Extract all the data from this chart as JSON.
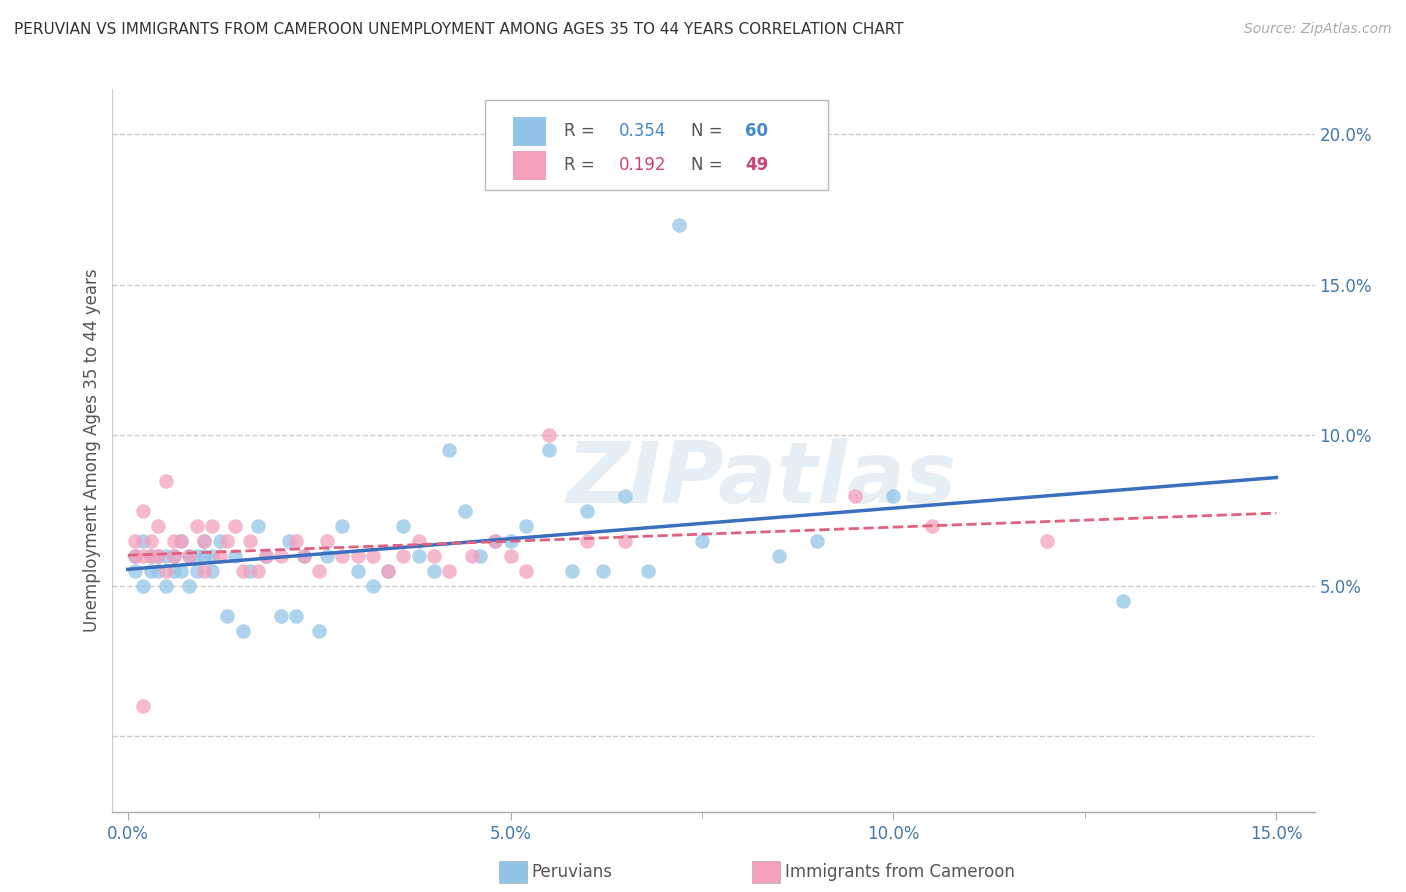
{
  "title": "PERUVIAN VS IMMIGRANTS FROM CAMEROON UNEMPLOYMENT AMONG AGES 35 TO 44 YEARS CORRELATION CHART",
  "source": "Source: ZipAtlas.com",
  "ylabel_label": "Unemployment Among Ages 35 to 44 years",
  "legend_label1": "Peruvians",
  "legend_label2": "Immigrants from Cameroon",
  "R1": 0.354,
  "N1": 60,
  "R2": 0.192,
  "N2": 49,
  "xlim": [
    -0.002,
    0.155
  ],
  "ylim": [
    -0.025,
    0.215
  ],
  "xticks": [
    0.0,
    0.05,
    0.1,
    0.15
  ],
  "yticks": [
    0.0,
    0.05,
    0.1,
    0.15,
    0.2
  ],
  "xticklabels": [
    "0.0%",
    "5.0%",
    "10.0%",
    "15.0%"
  ],
  "yticklabels": [
    "",
    "5.0%",
    "10.0%",
    "15.0%",
    "20.0%"
  ],
  "color_blue": "#92c5e8",
  "color_pink": "#f4a0bc",
  "color_blue_line": "#3a6fbe",
  "color_pink_line": "#e06080",
  "background_color": "#ffffff",
  "watermark": "ZIPatlas",
  "peruvians_x": [
    0.001,
    0.001,
    0.002,
    0.002,
    0.003,
    0.003,
    0.004,
    0.004,
    0.005,
    0.005,
    0.006,
    0.006,
    0.007,
    0.007,
    0.008,
    0.008,
    0.009,
    0.009,
    0.01,
    0.01,
    0.011,
    0.011,
    0.012,
    0.013,
    0.014,
    0.015,
    0.016,
    0.017,
    0.018,
    0.02,
    0.021,
    0.022,
    0.023,
    0.025,
    0.026,
    0.028,
    0.03,
    0.032,
    0.034,
    0.036,
    0.038,
    0.04,
    0.042,
    0.044,
    0.046,
    0.048,
    0.05,
    0.052,
    0.055,
    0.058,
    0.06,
    0.062,
    0.065,
    0.068,
    0.072,
    0.075,
    0.085,
    0.09,
    0.1,
    0.13
  ],
  "peruvians_y": [
    0.06,
    0.055,
    0.065,
    0.05,
    0.06,
    0.055,
    0.06,
    0.055,
    0.06,
    0.05,
    0.06,
    0.055,
    0.065,
    0.055,
    0.06,
    0.05,
    0.06,
    0.055,
    0.06,
    0.065,
    0.055,
    0.06,
    0.065,
    0.04,
    0.06,
    0.035,
    0.055,
    0.07,
    0.06,
    0.04,
    0.065,
    0.04,
    0.06,
    0.035,
    0.06,
    0.07,
    0.055,
    0.05,
    0.055,
    0.07,
    0.06,
    0.055,
    0.095,
    0.075,
    0.06,
    0.065,
    0.065,
    0.07,
    0.095,
    0.055,
    0.075,
    0.055,
    0.08,
    0.055,
    0.17,
    0.065,
    0.06,
    0.065,
    0.08,
    0.045
  ],
  "cameroon_x": [
    0.001,
    0.001,
    0.002,
    0.002,
    0.003,
    0.003,
    0.004,
    0.004,
    0.005,
    0.005,
    0.006,
    0.006,
    0.007,
    0.008,
    0.009,
    0.01,
    0.01,
    0.011,
    0.012,
    0.013,
    0.014,
    0.015,
    0.016,
    0.017,
    0.018,
    0.02,
    0.022,
    0.023,
    0.025,
    0.026,
    0.028,
    0.03,
    0.032,
    0.034,
    0.036,
    0.038,
    0.04,
    0.042,
    0.045,
    0.048,
    0.05,
    0.052,
    0.055,
    0.06,
    0.065,
    0.095,
    0.105,
    0.12,
    0.002
  ],
  "cameroon_y": [
    0.065,
    0.06,
    0.075,
    0.06,
    0.065,
    0.06,
    0.07,
    0.06,
    0.085,
    0.055,
    0.065,
    0.06,
    0.065,
    0.06,
    0.07,
    0.065,
    0.055,
    0.07,
    0.06,
    0.065,
    0.07,
    0.055,
    0.065,
    0.055,
    0.06,
    0.06,
    0.065,
    0.06,
    0.055,
    0.065,
    0.06,
    0.06,
    0.06,
    0.055,
    0.06,
    0.065,
    0.06,
    0.055,
    0.06,
    0.065,
    0.06,
    0.055,
    0.1,
    0.065,
    0.065,
    0.08,
    0.07,
    0.065,
    0.01
  ]
}
